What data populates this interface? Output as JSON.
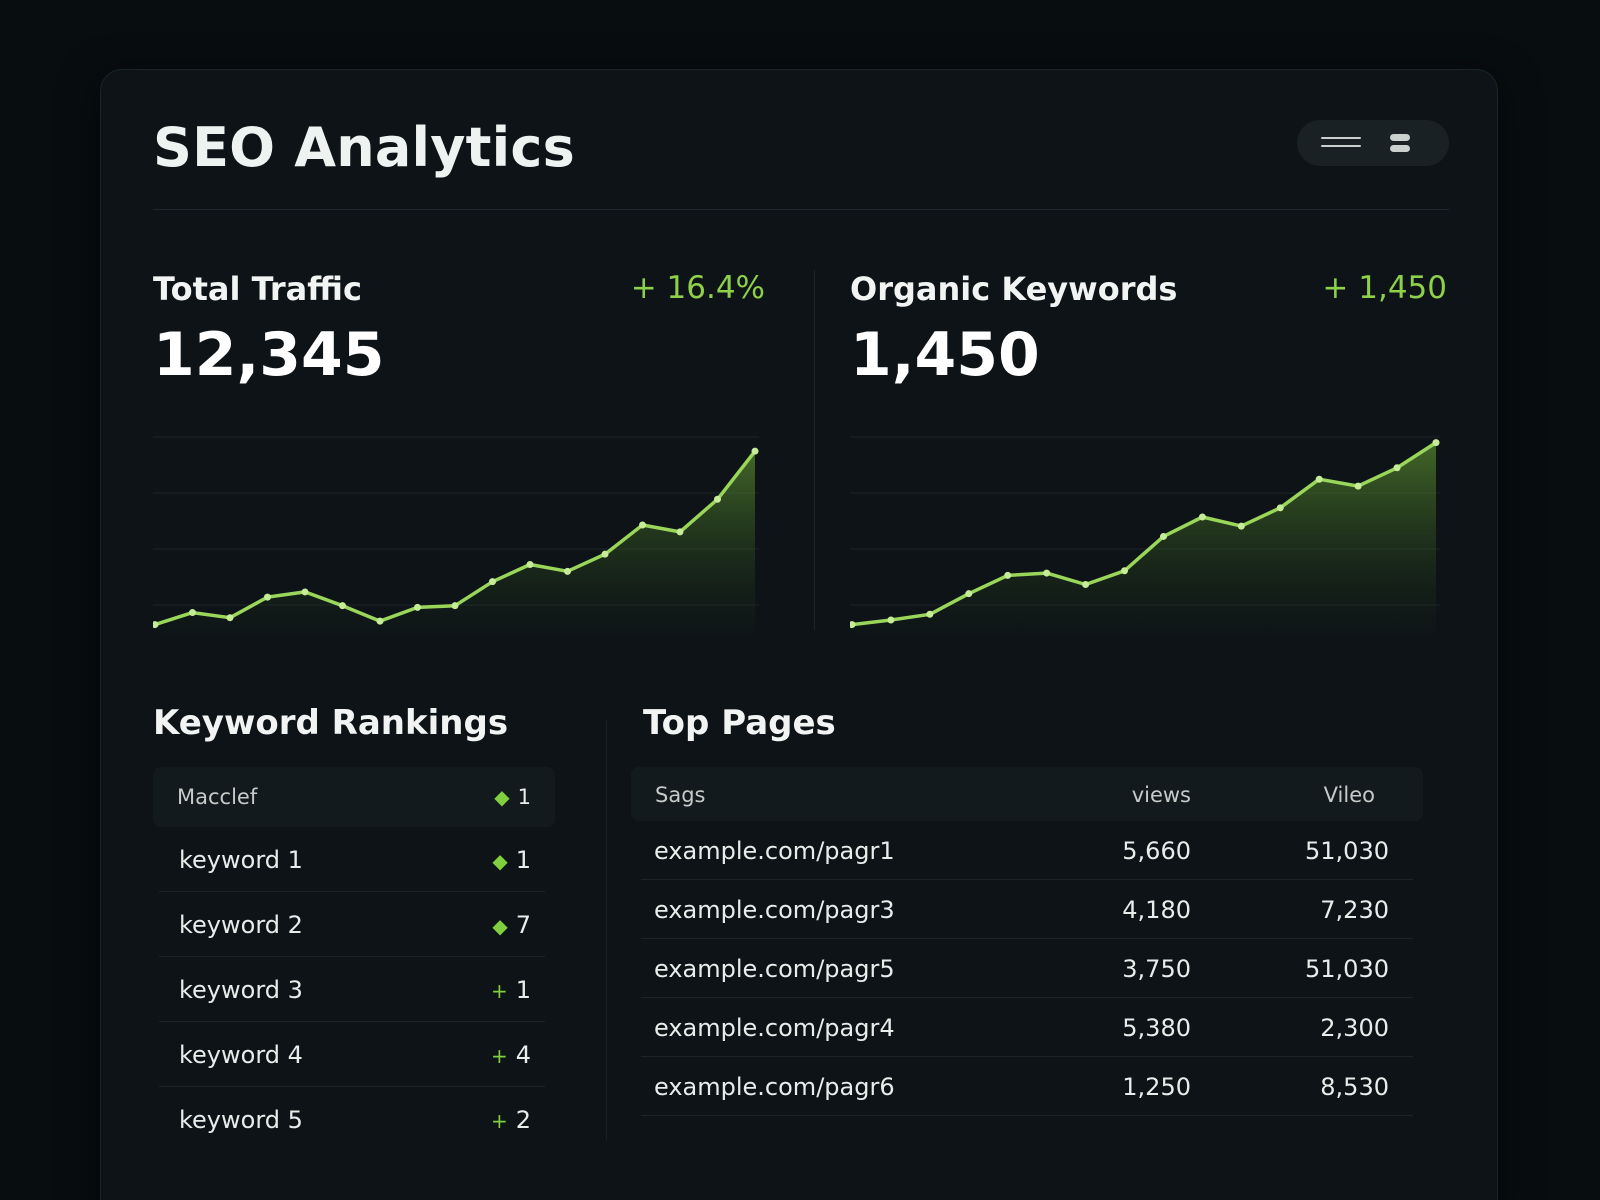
{
  "header": {
    "title": "SEO Analytics"
  },
  "view_toggle": {
    "icons": [
      "list-icon",
      "stack-icon"
    ]
  },
  "metrics": [
    {
      "label": "Total Traffic",
      "delta": "+ 16.4%",
      "value": "12,345",
      "chart_data": {
        "type": "area",
        "x": [
          0,
          1,
          2,
          3,
          4,
          5,
          6,
          7,
          8,
          9,
          10,
          11,
          12,
          13,
          14,
          15,
          16
        ],
        "values": [
          2,
          9,
          6,
          18,
          21,
          13,
          4,
          12,
          13,
          27,
          37,
          33,
          43,
          60,
          56,
          75,
          103
        ],
        "ylim": [
          0,
          120
        ]
      }
    },
    {
      "label": "Organic Keywords",
      "delta": "+ 1,450",
      "value": "1,450",
      "chart_data": {
        "type": "area",
        "x": [
          0,
          1,
          2,
          3,
          4,
          5,
          6,
          7,
          8,
          9,
          10,
          11,
          12,
          13,
          14,
          15
        ],
        "values": [
          3,
          7,
          12,
          30,
          46,
          48,
          38,
          50,
          80,
          97,
          89,
          105,
          130,
          124,
          140,
          162
        ],
        "ylim": [
          0,
          180
        ]
      }
    }
  ],
  "keyword_rankings": {
    "title": "Keyword Rankings",
    "header": {
      "name": "Macclef",
      "mark": "◆",
      "change": "1"
    },
    "rows": [
      {
        "name": "keyword 1",
        "mark": "◆",
        "change": "1"
      },
      {
        "name": "keyword 2",
        "mark": "◆",
        "change": "7"
      },
      {
        "name": "keyword 3",
        "mark": "+",
        "change": "1"
      },
      {
        "name": "keyword 4",
        "mark": "+",
        "change": "4"
      },
      {
        "name": "keyword 5",
        "mark": "+",
        "change": "2"
      }
    ]
  },
  "top_pages": {
    "title": "Top Pages",
    "columns": [
      "Sags",
      "views",
      "Vileo"
    ],
    "rows": [
      [
        "example.com/pagr1",
        "5,660",
        "51,030"
      ],
      [
        "example.com/pagr3",
        "4,180",
        "7,230"
      ],
      [
        "example.com/pagr5",
        "3,750",
        "51,030"
      ],
      [
        "example.com/pagr4",
        "5,380",
        "2,300"
      ],
      [
        "example.com/pagr6",
        "1,250",
        "8,530"
      ]
    ]
  },
  "colors": {
    "accent": "#8ed04a",
    "line": "#9ad65a",
    "panel": "#0d1317",
    "background": "#080d10"
  }
}
